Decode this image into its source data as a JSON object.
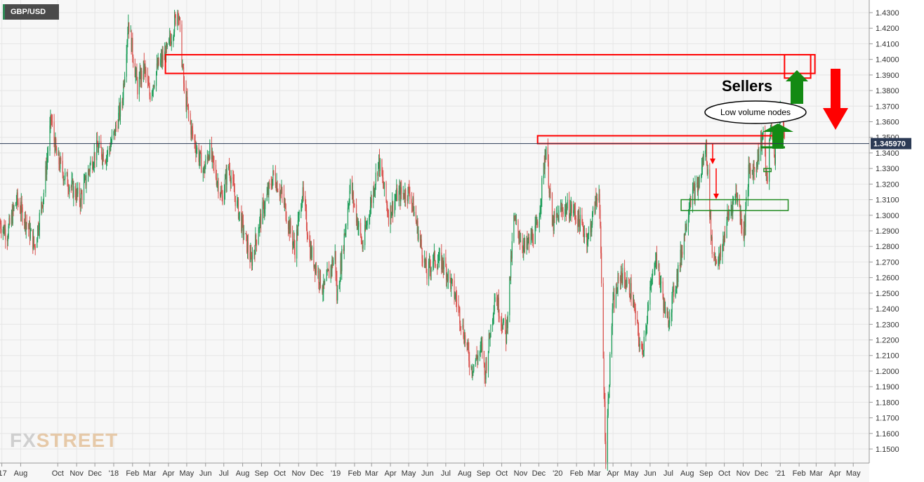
{
  "symbol": "GBP/USD",
  "logo": {
    "part1": "FX",
    "part2": "STREET"
  },
  "colors": {
    "up": "#1f9e5a",
    "down": "#d9534f",
    "zone_red": "#ff0000",
    "zone_green": "#228b22",
    "arrow_green": "#138a13",
    "arrow_red": "#ff0000",
    "price_line": "#2b3a55",
    "grid": "#e6e6e6"
  },
  "annotations": {
    "sellers": "Sellers",
    "low_volume_nodes": "Low volume nodes"
  },
  "chart_data": {
    "type": "candlestick",
    "title": "GBP/USD",
    "timeframe": "daily",
    "current_price": 1.34597,
    "current_price_label": "1.345970",
    "ylim": [
      1.143,
      1.435
    ],
    "y_ticks": [
      "1.4300",
      "1.4200",
      "1.4100",
      "1.4000",
      "1.3900",
      "1.3800",
      "1.3700",
      "1.3600",
      "1.3500",
      "1.3400",
      "1.3300",
      "1.3200",
      "1.3100",
      "1.3000",
      "1.2900",
      "1.2800",
      "1.2700",
      "1.2600",
      "1.2500",
      "1.2400",
      "1.2300",
      "1.2200",
      "1.2100",
      "1.2000",
      "1.1900",
      "1.1800",
      "1.1700",
      "1.1600",
      "1.1500"
    ],
    "x_range": [
      "2017-06-28",
      "2021-05-25"
    ],
    "x_ticks": [
      {
        "date": "2017-07-01",
        "label": "'17"
      },
      {
        "date": "2017-08-01",
        "label": "Aug"
      },
      {
        "date": "2017-10-01",
        "label": "Oct"
      },
      {
        "date": "2017-11-01",
        "label": "Nov"
      },
      {
        "date": "2017-12-01",
        "label": "Dec"
      },
      {
        "date": "2018-01-01",
        "label": "'18"
      },
      {
        "date": "2018-02-01",
        "label": "Feb"
      },
      {
        "date": "2018-03-01",
        "label": "Mar"
      },
      {
        "date": "2018-04-01",
        "label": "Apr"
      },
      {
        "date": "2018-05-01",
        "label": "May"
      },
      {
        "date": "2018-06-01",
        "label": "Jun"
      },
      {
        "date": "2018-07-01",
        "label": "Jul"
      },
      {
        "date": "2018-08-01",
        "label": "Aug"
      },
      {
        "date": "2018-09-01",
        "label": "Sep"
      },
      {
        "date": "2018-10-01",
        "label": "Oct"
      },
      {
        "date": "2018-11-01",
        "label": "Nov"
      },
      {
        "date": "2018-12-01",
        "label": "Dec"
      },
      {
        "date": "2019-01-01",
        "label": "'19"
      },
      {
        "date": "2019-02-01",
        "label": "Feb"
      },
      {
        "date": "2019-03-01",
        "label": "Mar"
      },
      {
        "date": "2019-04-01",
        "label": "Apr"
      },
      {
        "date": "2019-05-01",
        "label": "May"
      },
      {
        "date": "2019-06-01",
        "label": "Jun"
      },
      {
        "date": "2019-07-01",
        "label": "Jul"
      },
      {
        "date": "2019-08-01",
        "label": "Aug"
      },
      {
        "date": "2019-09-01",
        "label": "Sep"
      },
      {
        "date": "2019-10-01",
        "label": "Oct"
      },
      {
        "date": "2019-11-01",
        "label": "Nov"
      },
      {
        "date": "2019-12-01",
        "label": "Dec"
      },
      {
        "date": "2020-01-01",
        "label": "'20"
      },
      {
        "date": "2020-02-01",
        "label": "Feb"
      },
      {
        "date": "2020-03-01",
        "label": "Mar"
      },
      {
        "date": "2020-04-01",
        "label": "Apr"
      },
      {
        "date": "2020-05-01",
        "label": "May"
      },
      {
        "date": "2020-06-01",
        "label": "Jun"
      },
      {
        "date": "2020-07-01",
        "label": "Jul"
      },
      {
        "date": "2020-08-01",
        "label": "Aug"
      },
      {
        "date": "2020-09-01",
        "label": "Sep"
      },
      {
        "date": "2020-10-01",
        "label": "Oct"
      },
      {
        "date": "2020-11-01",
        "label": "Nov"
      },
      {
        "date": "2020-12-01",
        "label": "Dec"
      },
      {
        "date": "2021-01-01",
        "label": "'21"
      },
      {
        "date": "2021-02-01",
        "label": "Feb"
      },
      {
        "date": "2021-03-01",
        "label": "Mar"
      },
      {
        "date": "2021-04-01",
        "label": "Apr"
      },
      {
        "date": "2021-05-01",
        "label": "May"
      }
    ],
    "price_path": [
      [
        "2017-06-28",
        1.295
      ],
      [
        "2017-07-10",
        1.288
      ],
      [
        "2017-07-25",
        1.31
      ],
      [
        "2017-08-10",
        1.296
      ],
      [
        "2017-08-24",
        1.28
      ],
      [
        "2017-09-08",
        1.315
      ],
      [
        "2017-09-20",
        1.362
      ],
      [
        "2017-09-29",
        1.338
      ],
      [
        "2017-10-12",
        1.325
      ],
      [
        "2017-10-25",
        1.317
      ],
      [
        "2017-11-07",
        1.31
      ],
      [
        "2017-11-24",
        1.333
      ],
      [
        "2017-12-05",
        1.343
      ],
      [
        "2017-12-20",
        1.338
      ],
      [
        "2018-01-02",
        1.352
      ],
      [
        "2018-01-15",
        1.373
      ],
      [
        "2018-01-25",
        1.425
      ],
      [
        "2018-02-09",
        1.382
      ],
      [
        "2018-02-20",
        1.395
      ],
      [
        "2018-03-01",
        1.377
      ],
      [
        "2018-03-15",
        1.396
      ],
      [
        "2018-03-30",
        1.405
      ],
      [
        "2018-04-17",
        1.433
      ],
      [
        "2018-04-27",
        1.379
      ],
      [
        "2018-05-10",
        1.352
      ],
      [
        "2018-05-29",
        1.328
      ],
      [
        "2018-06-07",
        1.342
      ],
      [
        "2018-06-28",
        1.311
      ],
      [
        "2018-07-09",
        1.332
      ],
      [
        "2018-07-20",
        1.311
      ],
      [
        "2018-08-15",
        1.27
      ],
      [
        "2018-08-31",
        1.299
      ],
      [
        "2018-09-21",
        1.326
      ],
      [
        "2018-10-05",
        1.312
      ],
      [
        "2018-10-26",
        1.278
      ],
      [
        "2018-11-07",
        1.315
      ],
      [
        "2018-11-20",
        1.278
      ],
      [
        "2018-12-12",
        1.252
      ],
      [
        "2018-12-31",
        1.275
      ],
      [
        "2019-01-03",
        1.247
      ],
      [
        "2019-01-25",
        1.319
      ],
      [
        "2019-02-14",
        1.28
      ],
      [
        "2019-03-13",
        1.335
      ],
      [
        "2019-03-29",
        1.3
      ],
      [
        "2019-04-12",
        1.313
      ],
      [
        "2019-05-03",
        1.315
      ],
      [
        "2019-05-31",
        1.262
      ],
      [
        "2019-06-10",
        1.272
      ],
      [
        "2019-06-28",
        1.269
      ],
      [
        "2019-07-19",
        1.245
      ],
      [
        "2019-08-12",
        1.202
      ],
      [
        "2019-08-30",
        1.215
      ],
      [
        "2019-09-03",
        1.197
      ],
      [
        "2019-09-20",
        1.25
      ],
      [
        "2019-10-08",
        1.222
      ],
      [
        "2019-10-21",
        1.297
      ],
      [
        "2019-11-08",
        1.278
      ],
      [
        "2019-11-29",
        1.292
      ],
      [
        "2019-12-13",
        1.345
      ],
      [
        "2019-12-23",
        1.293
      ],
      [
        "2020-01-10",
        1.305
      ],
      [
        "2020-01-27",
        1.303
      ],
      [
        "2020-02-20",
        1.285
      ],
      [
        "2020-03-09",
        1.319
      ],
      [
        "2020-03-20",
        1.145
      ],
      [
        "2020-03-31",
        1.24
      ],
      [
        "2020-04-14",
        1.263
      ],
      [
        "2020-05-01",
        1.251
      ],
      [
        "2020-05-18",
        1.21
      ],
      [
        "2020-06-10",
        1.275
      ],
      [
        "2020-06-29",
        1.23
      ],
      [
        "2020-07-20",
        1.27
      ],
      [
        "2020-08-06",
        1.312
      ],
      [
        "2020-08-19",
        1.318
      ],
      [
        "2020-09-01",
        1.345
      ],
      [
        "2020-09-11",
        1.277
      ],
      [
        "2020-09-23",
        1.27
      ],
      [
        "2020-10-06",
        1.298
      ],
      [
        "2020-10-21",
        1.315
      ],
      [
        "2020-11-02",
        1.288
      ],
      [
        "2020-11-10",
        1.327
      ],
      [
        "2020-11-20",
        1.33
      ],
      [
        "2020-12-04",
        1.353
      ],
      [
        "2020-12-10",
        1.32
      ],
      [
        "2020-12-17",
        1.36
      ],
      [
        "2020-12-23",
        1.338
      ],
      [
        "2021-01-04",
        1.37
      ],
      [
        "2021-01-08",
        1.346
      ]
    ],
    "zones": [
      {
        "kind": "resistance",
        "from": "2018-03-27",
        "to": "2021-02-27",
        "low": 1.391,
        "high": 1.403,
        "color": "red"
      },
      {
        "kind": "sellers",
        "from": "2021-01-08",
        "to": "2021-02-20",
        "low": 1.388,
        "high": 1.403,
        "color": "red"
      },
      {
        "kind": "resistance",
        "from": "2019-11-29",
        "to": "2020-12-28",
        "low": 1.346,
        "high": 1.351,
        "color": "red"
      },
      {
        "kind": "support",
        "from": "2020-07-22",
        "to": "2021-01-14",
        "low": 1.303,
        "high": 1.31,
        "color": "green"
      },
      {
        "kind": "support",
        "from": "2020-12-05",
        "to": "2020-12-17",
        "low": 1.328,
        "high": 1.33,
        "color": "green"
      }
    ]
  }
}
